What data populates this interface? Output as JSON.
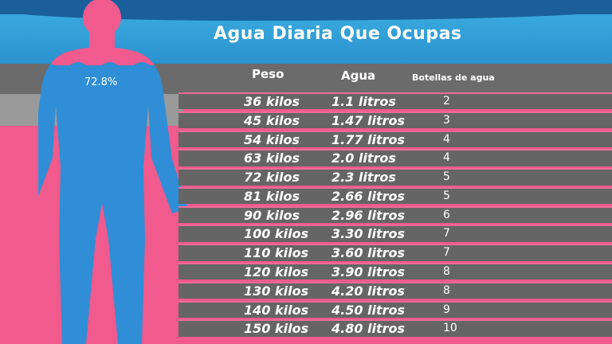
{
  "title": "Agua Diaria Que Ocupas",
  "percent_label": "72.8%",
  "headers": {
    "peso": "Peso",
    "agua": "Agua",
    "botellas": "Botellas de agua"
  },
  "colors": {
    "pink": "#f05a8c",
    "blue": "#2b92cf",
    "dark_blue": "#1a5f9c",
    "gray": "#656565"
  },
  "rows": [
    {
      "peso": "36 kilos",
      "agua": "1.1 litros",
      "botellas": "2"
    },
    {
      "peso": "45 kilos",
      "agua": "1.47 litros",
      "botellas": "3"
    },
    {
      "peso": "54 kilos",
      "agua": "1.77 litros",
      "botellas": "4"
    },
    {
      "peso": "63 kilos",
      "agua": "2.0 litros",
      "botellas": "4"
    },
    {
      "peso": "72 kilos",
      "agua": "2.3 litros",
      "botellas": "5"
    },
    {
      "peso": "81 kilos",
      "agua": "2.66 litros",
      "botellas": "5"
    },
    {
      "peso": "90 kilos",
      "agua": "2.96 litros",
      "botellas": "6"
    },
    {
      "peso": "100 kilos",
      "agua": "3.30 litros",
      "botellas": "7"
    },
    {
      "peso": "110 kilos",
      "agua": "3.60 litros",
      "botellas": "7"
    },
    {
      "peso": "120 kilos",
      "agua": "3.90 litros",
      "botellas": "8"
    },
    {
      "peso": "130 kilos",
      "agua": "4.20 litros",
      "botellas": "8"
    },
    {
      "peso": "140 kilos",
      "agua": "4.50 litros",
      "botellas": "9"
    },
    {
      "peso": "150 kilos",
      "agua": "4.80 litros",
      "botellas": "10"
    }
  ]
}
